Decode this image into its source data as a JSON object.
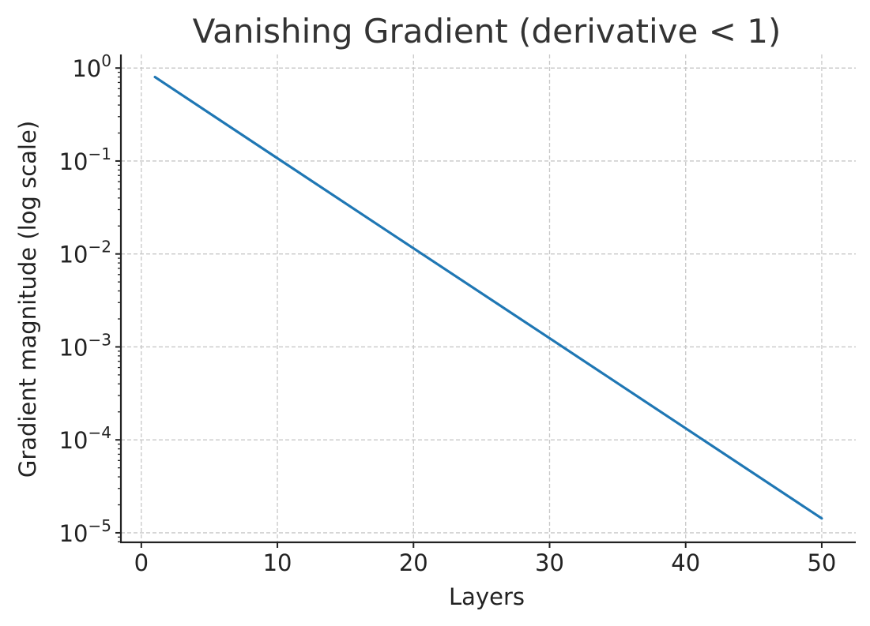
{
  "chart_data": {
    "type": "line",
    "title": "Vanishing Gradient (derivative < 1)",
    "xlabel": "Layers",
    "ylabel": "Gradient magnitude (log scale)",
    "yscale": "log",
    "xlim": [
      -1.5,
      52.5
    ],
    "ylim": [
      7.9e-06,
      1.4
    ],
    "x_ticks": [
      0,
      10,
      20,
      30,
      40,
      50
    ],
    "y_ticks": [
      {
        "value": 1,
        "base": "10",
        "exp": "0"
      },
      {
        "value": 0.1,
        "base": "10",
        "exp": "−1"
      },
      {
        "value": 0.01,
        "base": "10",
        "exp": "−2"
      },
      {
        "value": 0.001,
        "base": "10",
        "exp": "−3"
      },
      {
        "value": 0.0001,
        "base": "10",
        "exp": "−4"
      },
      {
        "value": 1e-05,
        "base": "10",
        "exp": "−5"
      }
    ],
    "grid": true,
    "series": [
      {
        "color": "#1f77b4",
        "x": [
          1,
          10,
          20,
          30,
          40,
          50
        ],
        "y": [
          0.8,
          0.107,
          0.0115,
          0.00124,
          0.000133,
          1.43e-05
        ]
      }
    ]
  }
}
